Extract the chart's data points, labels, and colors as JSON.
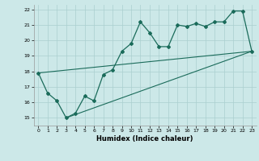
{
  "bg_color": "#cce8e8",
  "grid_color": "#aacfcf",
  "line_color": "#1a6b5a",
  "xlabel": "Humidex (Indice chaleur)",
  "xlim": [
    -0.5,
    23.5
  ],
  "ylim": [
    14.5,
    22.3
  ],
  "xticks": [
    0,
    1,
    2,
    3,
    4,
    5,
    6,
    7,
    8,
    9,
    10,
    11,
    12,
    13,
    14,
    15,
    16,
    17,
    18,
    19,
    20,
    21,
    22,
    23
  ],
  "yticks": [
    15,
    16,
    17,
    18,
    19,
    20,
    21,
    22
  ],
  "line1_x": [
    0,
    1,
    2,
    3,
    4,
    5,
    6,
    7,
    8,
    9,
    10,
    11,
    12,
    13,
    14,
    15,
    16,
    17,
    18,
    19,
    20,
    21,
    22,
    23
  ],
  "line1_y": [
    17.9,
    16.6,
    16.1,
    15.0,
    15.3,
    16.4,
    16.1,
    17.8,
    18.1,
    19.3,
    19.8,
    21.2,
    20.5,
    19.6,
    19.6,
    21.0,
    20.9,
    21.1,
    20.9,
    21.2,
    21.2,
    21.9,
    21.9,
    19.3
  ],
  "upper_line_x": [
    0,
    23
  ],
  "upper_line_y": [
    17.9,
    19.3
  ],
  "lower_line_x": [
    3,
    23
  ],
  "lower_line_y": [
    15.0,
    19.3
  ]
}
